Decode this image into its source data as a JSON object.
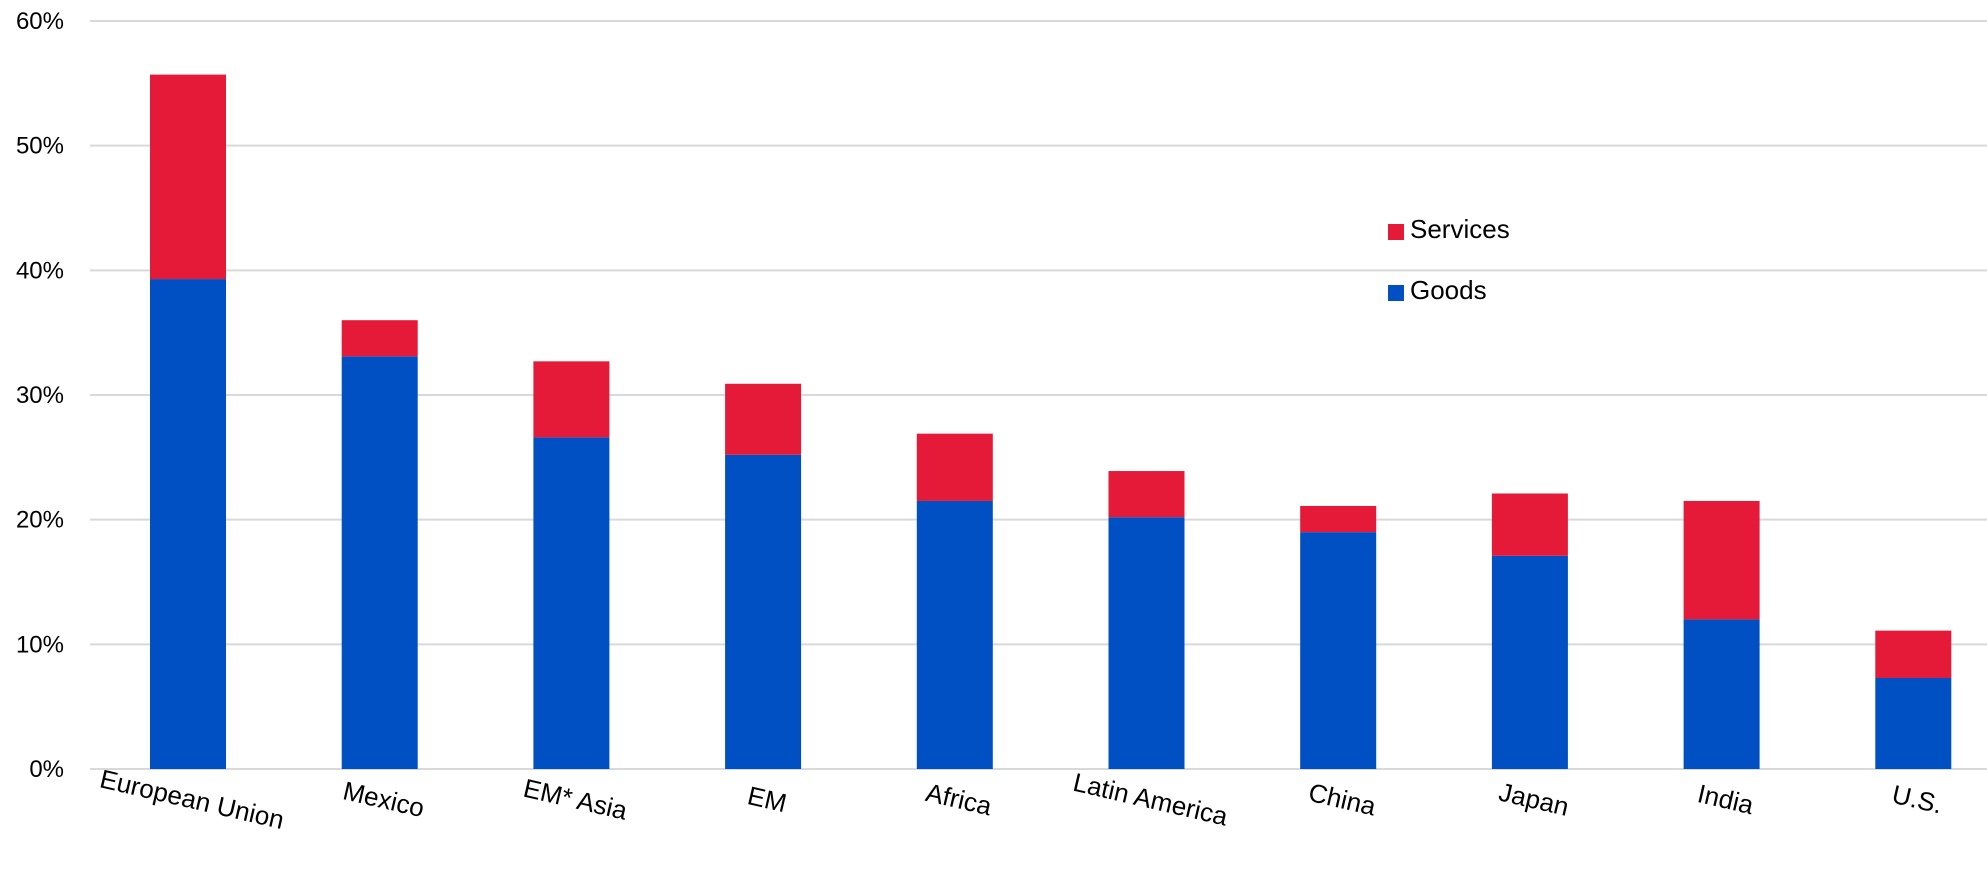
{
  "chart_data": {
    "type": "bar",
    "stacked": true,
    "categories": [
      "European Union",
      "Mexico",
      "EM* Asia",
      "EM",
      "Africa",
      "Latin America",
      "China",
      "Japan",
      "India",
      "U.S."
    ],
    "series": [
      {
        "name": "Goods",
        "color": "#0050c3",
        "values": [
          39.3,
          33.1,
          26.6,
          25.2,
          21.5,
          20.2,
          19.0,
          17.1,
          12.0,
          7.3
        ]
      },
      {
        "name": "Services",
        "color": "#e41a38",
        "values": [
          16.4,
          2.9,
          6.1,
          5.7,
          5.4,
          3.7,
          2.1,
          5.0,
          9.5,
          3.8
        ]
      }
    ],
    "ylim": [
      0,
      60
    ],
    "yticks": [
      0,
      10,
      20,
      30,
      40,
      50,
      60
    ],
    "ytick_labels": [
      "0%",
      "10%",
      "20%",
      "30%",
      "40%",
      "50%",
      "60%"
    ],
    "grid": true,
    "legend": {
      "placement": "upper-right-center",
      "order": [
        "Services",
        "Goods"
      ]
    },
    "title": "",
    "xlabel": "",
    "ylabel": ""
  }
}
